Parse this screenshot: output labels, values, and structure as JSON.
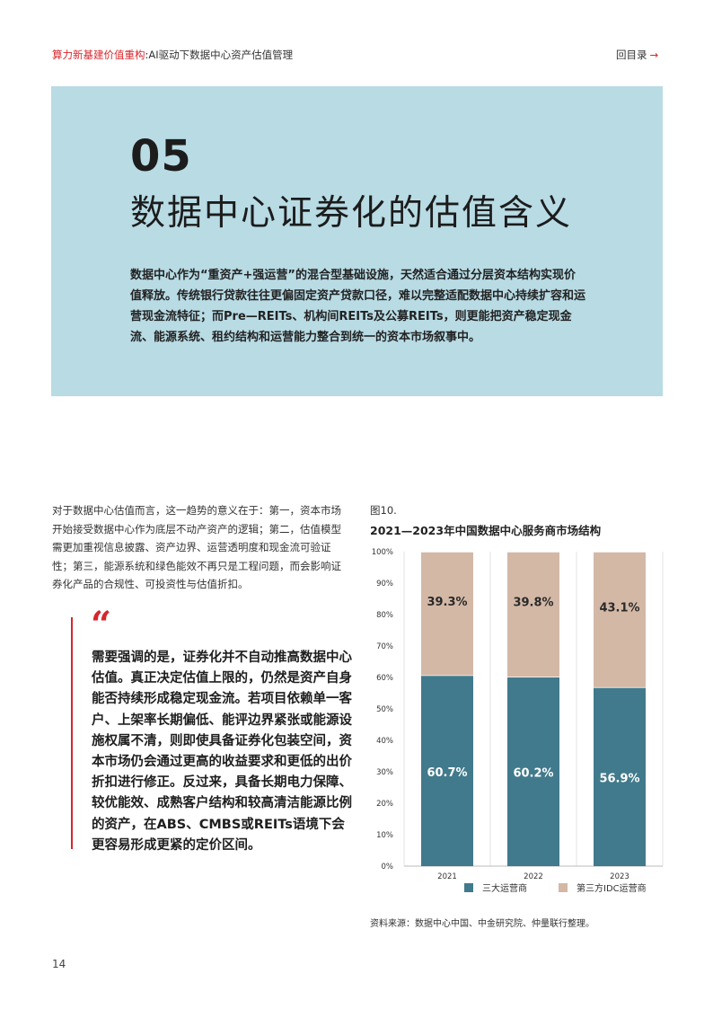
{
  "header": {
    "title_red": "算力新基建价值重构",
    "title_rest": ":AI驱动下数据中心资产估值管理",
    "back_label": "回目录",
    "back_arrow": "→"
  },
  "section": {
    "number": "05",
    "title": "数据中心证券化的估值含义",
    "intro": "数据中心作为“重资产+强运营”的混合型基础设施，天然适合通过分层资本结构实现价值释放。传统银行贷款往往更偏固定资产贷款口径，难以完整适配数据中心持续扩容和运营现金流特征；而Pre—REITs、机构间REITs及公募REITs，则更能把资产稳定现金流、能源系统、租约结构和运营能力整合到统一的资本市场叙事中。"
  },
  "body_paragraph": "对于数据中心估值而言，这一趋势的意义在于：第一，资本市场开始接受数据中心作为底层不动产资产的逻辑；第二，估值模型需更加重视信息披露、资产边界、运营透明度和现金流可验证性；第三，能源系统和绿色能效不再只是工程问题，而会影响证券化产品的合规性、可投资性与估值折扣。",
  "quote": {
    "mark": "“",
    "text": "需要强调的是，证券化并不自动推高数据中心估值。真正决定估值上限的，仍然是资产自身能否持续形成稳定现金流。若项目依赖单一客户、上架率长期偏低、能评边界紧张或能源设施权属不清，则即使具备证券化包装空间，资本市场仍会通过更高的收益要求和更低的出价折扣进行修正。反过来，具备长期电力保障、较优能效、成熟客户结构和较高清洁能源比例的资产，在ABS、CMBS或REITs语境下会更容易形成更紧的定价区间。"
  },
  "figure": {
    "label": "图10.",
    "title": "2021—2023年中国数据中心服务商市场结构",
    "source": "资料来源：数据中心中国、中金研究院、仲量联行整理。"
  },
  "chart_data": {
    "type": "bar",
    "stacked": true,
    "categories": [
      "2021",
      "2022",
      "2023"
    ],
    "series": [
      {
        "name": "三大运营商",
        "values": [
          60.7,
          60.2,
          56.9
        ],
        "labels": [
          "60.7%",
          "60.2%",
          "56.9%"
        ],
        "color": "#417a8c"
      },
      {
        "name": "第三方IDC运营商",
        "values": [
          39.3,
          39.8,
          43.1
        ],
        "labels": [
          "39.3%",
          "39.8%",
          "43.1%"
        ],
        "color": "#d3b8a6"
      }
    ],
    "ylim": [
      0,
      100
    ],
    "yticks": [
      "0%",
      "10%",
      "20%",
      "30%",
      "40%",
      "50%",
      "60%",
      "70%",
      "80%",
      "90%",
      "100%"
    ],
    "grid": "vertical",
    "legend": "bottom"
  },
  "page_number": "14"
}
